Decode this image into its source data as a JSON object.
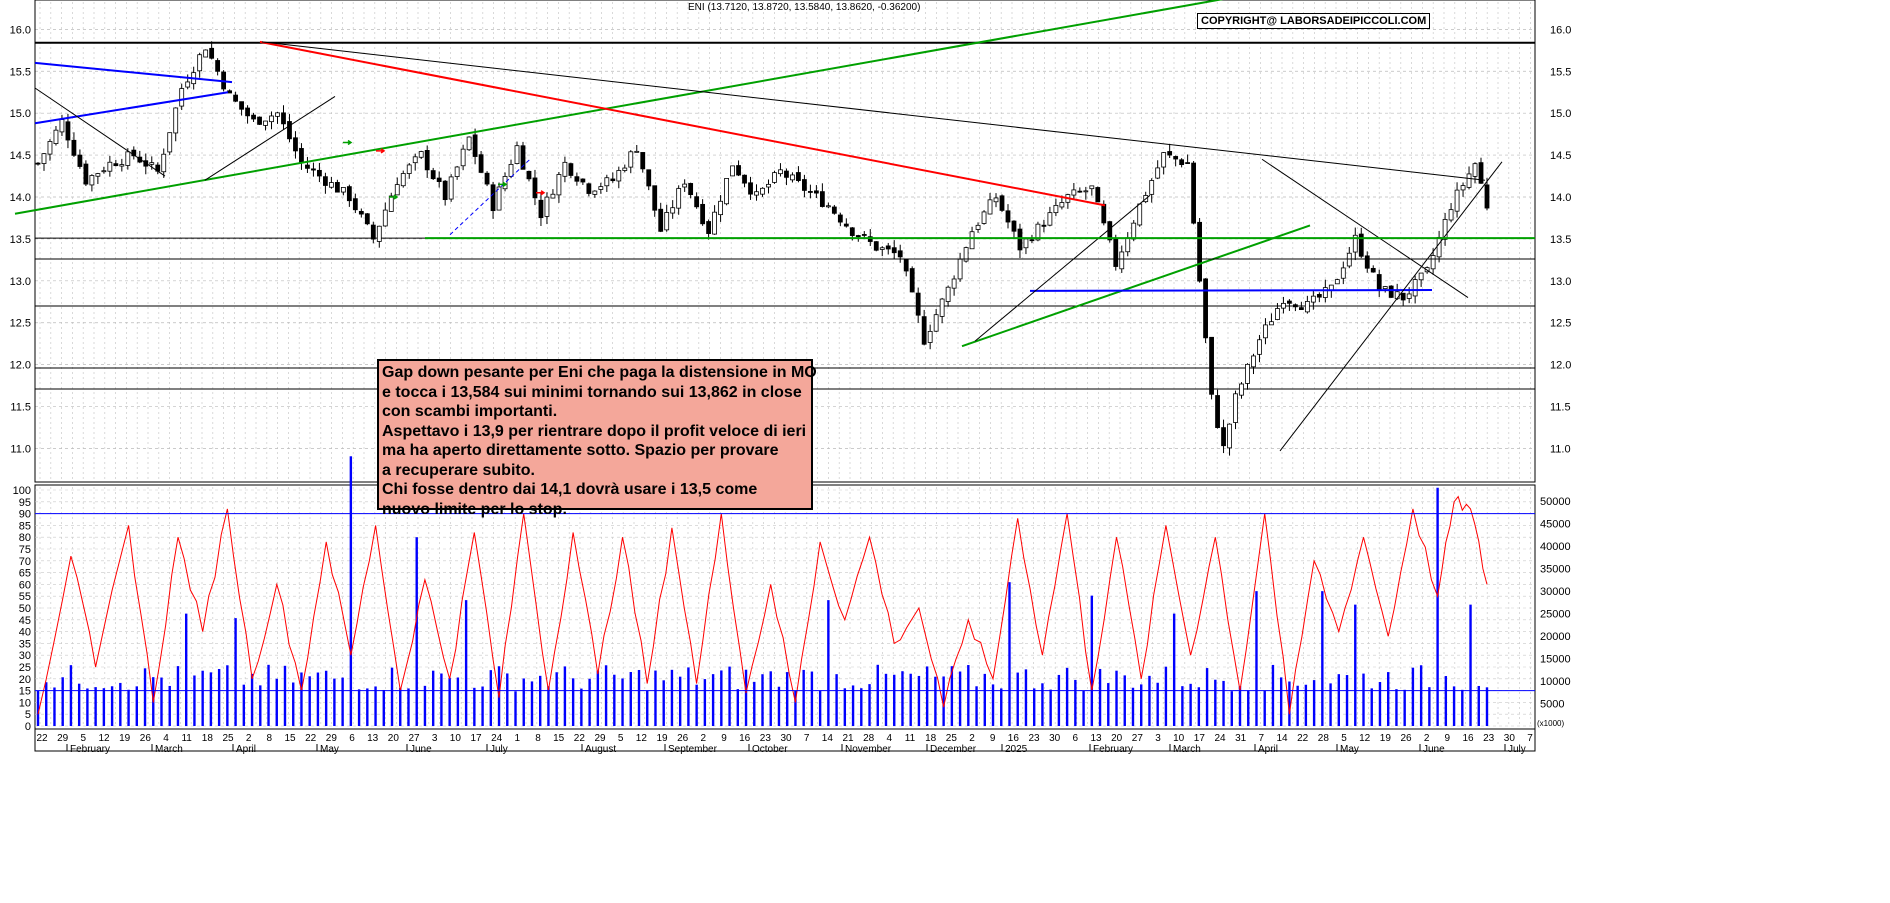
{
  "chart_data": [
    {
      "type": "candlestick",
      "title": "ENI (13.7120, 13.8720, 13.5840, 13.8620, -0.36200)",
      "watermark": "COPYRIGHT@ LABORSADEIPICCOLI.COM",
      "ylim": [
        10.6,
        16.35
      ],
      "yticks": [
        "16.0",
        "15.5",
        "15.0",
        "14.5",
        "14.0",
        "13.5",
        "13.0",
        "12.5",
        "12.0",
        "11.5",
        "11.0"
      ],
      "ytick_values": [
        16.0,
        15.5,
        15.0,
        14.5,
        14.0,
        13.5,
        13.0,
        12.5,
        12.0,
        11.5,
        11.0
      ],
      "horizontal_levels": [
        15.84,
        13.51,
        13.26,
        12.7,
        11.96,
        11.71
      ],
      "price_path": [
        [
          0,
          14.4
        ],
        [
          4,
          14.9
        ],
        [
          8,
          14.2
        ],
        [
          12,
          14.4
        ],
        [
          16,
          14.5
        ],
        [
          20,
          14.3
        ],
        [
          24,
          15.3
        ],
        [
          28,
          15.8
        ],
        [
          32,
          15.2
        ],
        [
          36,
          14.9
        ],
        [
          40,
          15.0
        ],
        [
          44,
          14.4
        ],
        [
          48,
          14.2
        ],
        [
          52,
          14.0
        ],
        [
          56,
          13.5
        ],
        [
          60,
          14.2
        ],
        [
          64,
          14.5
        ],
        [
          68,
          14.0
        ],
        [
          72,
          14.7
        ],
        [
          76,
          13.9
        ],
        [
          80,
          14.6
        ],
        [
          84,
          13.8
        ],
        [
          88,
          14.4
        ],
        [
          92,
          14.1
        ],
        [
          96,
          14.2
        ],
        [
          100,
          14.6
        ],
        [
          104,
          13.6
        ],
        [
          108,
          14.2
        ],
        [
          112,
          13.6
        ],
        [
          116,
          14.4
        ],
        [
          120,
          14.0
        ],
        [
          124,
          14.3
        ],
        [
          128,
          14.1
        ],
        [
          132,
          13.9
        ],
        [
          136,
          13.6
        ],
        [
          140,
          13.4
        ],
        [
          144,
          13.3
        ],
        [
          148,
          12.3
        ],
        [
          152,
          12.9
        ],
        [
          156,
          13.6
        ],
        [
          160,
          14.0
        ],
        [
          164,
          13.4
        ],
        [
          168,
          13.7
        ],
        [
          172,
          14.0
        ],
        [
          176,
          14.1
        ],
        [
          180,
          13.2
        ],
        [
          184,
          13.9
        ],
        [
          188,
          14.5
        ],
        [
          192,
          14.4
        ],
        [
          194,
          13.0
        ],
        [
          196,
          11.6
        ],
        [
          198,
          11.0
        ],
        [
          200,
          11.6
        ],
        [
          204,
          12.3
        ],
        [
          208,
          12.8
        ],
        [
          212,
          12.7
        ],
        [
          216,
          12.9
        ],
        [
          220,
          13.5
        ],
        [
          224,
          12.9
        ],
        [
          228,
          12.8
        ],
        [
          232,
          13.1
        ],
        [
          236,
          13.9
        ],
        [
          240,
          14.4
        ],
        [
          242,
          13.9
        ]
      ],
      "trendlines": [
        {
          "color": "#00a000",
          "points": [
            [
              15,
              13.8
            ],
            [
              1265,
              16.45
            ]
          ]
        },
        {
          "color": "#ff0000",
          "points": [
            [
              260,
              15.85
            ],
            [
              1105,
              13.9
            ]
          ]
        },
        {
          "color": "#000000",
          "points": [
            [
              262,
              15.85
            ],
            [
              1485,
              14.2
            ]
          ]
        },
        {
          "color": "#0000ff",
          "points": [
            [
              35,
              14.88
            ],
            [
              228,
              15.25
            ]
          ]
        },
        {
          "color": "#0000ff",
          "points": [
            [
              35,
              15.6
            ],
            [
              232,
              15.37
            ]
          ]
        },
        {
          "color": "#00a000",
          "points": [
            [
              962,
              12.22
            ],
            [
              1310,
              13.66
            ]
          ]
        },
        {
          "color": "#0000ff",
          "points": [
            [
              1030,
              12.88
            ],
            [
              1432,
              12.89
            ]
          ]
        },
        {
          "color": "#000000",
          "points": [
            [
              1280,
              10.97
            ],
            [
              1502,
              14.42
            ]
          ]
        },
        {
          "color": "#000000",
          "points": [
            [
              975,
              12.28
            ],
            [
              1150,
              14.02
            ]
          ]
        },
        {
          "color": "#000000",
          "points": [
            [
              1262,
              14.45
            ],
            [
              1468,
              12.8
            ]
          ]
        },
        {
          "color": "#000000",
          "points": [
            [
              35,
              15.3
            ],
            [
              165,
              14.25
            ]
          ]
        },
        {
          "color": "#000000",
          "points": [
            [
              205,
              14.2
            ],
            [
              335,
              15.2
            ]
          ]
        },
        {
          "color": "#00a000",
          "points": [
            [
              425,
              13.51
            ],
            [
              1535,
              13.51
            ]
          ]
        },
        {
          "color": "#000000",
          "points": [
            [
              900,
              13.26
            ],
            [
              1535,
              13.26
            ]
          ]
        }
      ],
      "annotation_lines": [
        "Gap down pesante per Eni che paga la distensione in MO",
        "e tocca i 13,584 sui minimi tornando sui 13,862 in close",
        "con scambi importanti.",
        "Aspettavo i 13,9 per rientrare dopo il profit veloce di ieri",
        "ma ha aperto direttamente sotto. Spazio per provare",
        "a recuperare subito.",
        "Chi fosse dentro dai 14,1 dovrà usare i 13,5 come",
        "nuovo limite per lo stop."
      ]
    },
    {
      "type": "bar+line",
      "left_yticks": [
        "100",
        "95",
        "90",
        "85",
        "80",
        "75",
        "70",
        "65",
        "60",
        "55",
        "50",
        "45",
        "40",
        "35",
        "30",
        "25",
        "20",
        "15",
        "10",
        "5",
        "0"
      ],
      "left_ylim": [
        0,
        100
      ],
      "oscillator_levels": [
        90,
        15
      ],
      "right_yticks": [
        "50000",
        "45000",
        "40000",
        "35000",
        "30000",
        "25000",
        "20000",
        "15000",
        "10000",
        "5000"
      ],
      "right_ylim": [
        0,
        52500
      ],
      "right_unit": "(x1000)",
      "volume_color": "#0000ff",
      "oscillator_color": "#ff0000",
      "oscillator_path": [
        [
          0,
          5
        ],
        [
          4,
          72
        ],
        [
          7,
          25
        ],
        [
          11,
          85
        ],
        [
          14,
          10
        ],
        [
          17,
          80
        ],
        [
          20,
          40
        ],
        [
          23,
          92
        ],
        [
          26,
          20
        ],
        [
          29,
          60
        ],
        [
          32,
          15
        ],
        [
          35,
          78
        ],
        [
          38,
          30
        ],
        [
          41,
          85
        ],
        [
          44,
          15
        ],
        [
          47,
          62
        ],
        [
          50,
          20
        ],
        [
          53,
          82
        ],
        [
          56,
          12
        ],
        [
          59,
          90
        ],
        [
          62,
          15
        ],
        [
          65,
          82
        ],
        [
          68,
          22
        ],
        [
          71,
          80
        ],
        [
          74,
          18
        ],
        [
          77,
          84
        ],
        [
          80,
          18
        ],
        [
          83,
          90
        ],
        [
          86,
          14
        ],
        [
          89,
          60
        ],
        [
          92,
          10
        ],
        [
          95,
          78
        ],
        [
          98,
          45
        ],
        [
          101,
          80
        ],
        [
          104,
          35
        ],
        [
          107,
          50
        ],
        [
          110,
          8
        ],
        [
          113,
          45
        ],
        [
          116,
          20
        ],
        [
          119,
          88
        ],
        [
          122,
          30
        ],
        [
          125,
          90
        ],
        [
          128,
          15
        ],
        [
          131,
          80
        ],
        [
          134,
          20
        ],
        [
          137,
          85
        ],
        [
          140,
          30
        ],
        [
          143,
          80
        ],
        [
          146,
          15
        ],
        [
          149,
          90
        ],
        [
          152,
          5
        ],
        [
          155,
          70
        ],
        [
          158,
          40
        ],
        [
          161,
          80
        ],
        [
          164,
          38
        ],
        [
          167,
          92
        ],
        [
          170,
          55
        ],
        [
          172,
          95
        ],
        [
          174,
          92
        ],
        [
          176,
          60
        ]
      ],
      "volume_base_level": 9500,
      "volume_spikes": [
        [
          18,
          25000
        ],
        [
          24,
          24000
        ],
        [
          38,
          60000
        ],
        [
          46,
          42000
        ],
        [
          52,
          28000
        ],
        [
          96,
          28000
        ],
        [
          118,
          32000
        ],
        [
          128,
          29000
        ],
        [
          138,
          25000
        ],
        [
          148,
          30000
        ],
        [
          156,
          30000
        ],
        [
          160,
          27000
        ],
        [
          170,
          53000
        ],
        [
          174,
          27000
        ]
      ],
      "x_day_labels": [
        "22",
        "29",
        "5",
        "12",
        "19",
        "26",
        "4",
        "11",
        "18",
        "25",
        "2",
        "8",
        "15",
        "22",
        "29",
        "6",
        "13",
        "20",
        "27",
        "3",
        "10",
        "17",
        "24",
        "1",
        "8",
        "15",
        "22",
        "29",
        "5",
        "12",
        "19",
        "26",
        "2",
        "9",
        "16",
        "23",
        "30",
        "7",
        "14",
        "21",
        "28",
        "4",
        "11",
        "18",
        "25",
        "2",
        "9",
        "16",
        "23",
        "30",
        "6",
        "13",
        "20",
        "27",
        "3",
        "10",
        "17",
        "24",
        "31",
        "7",
        "14",
        "22",
        "28",
        "5",
        "12",
        "19",
        "26",
        "2",
        "9",
        "16",
        "23",
        "30",
        "7"
      ],
      "x_month_labels": [
        "February",
        "March",
        "April",
        "May",
        "June",
        "July",
        "August",
        "September",
        "October",
        "November",
        "December",
        "2025",
        "February",
        "March",
        "April",
        "May",
        "June",
        "July"
      ]
    }
  ]
}
